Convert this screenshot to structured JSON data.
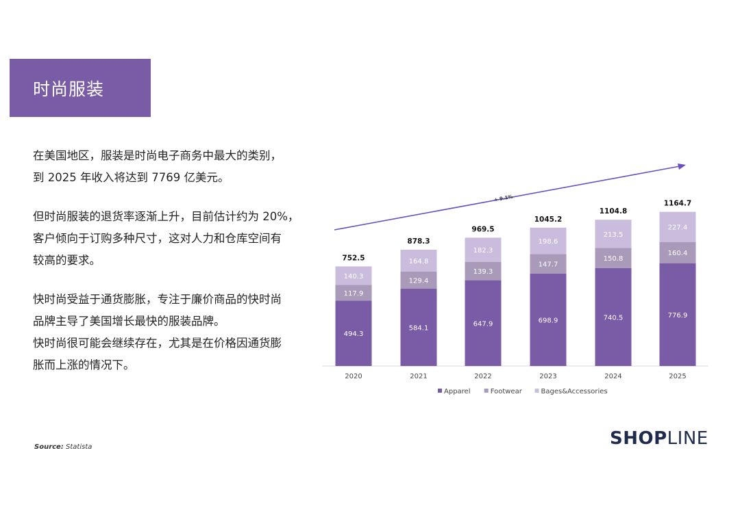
{
  "title": "时尚服装",
  "paragraphs": [
    [
      "在美国地区，服装是时尚电子商务中最大的类别，",
      "到 2025 年收入将达到 7769 亿美元。"
    ],
    [
      "但时尚服装的退货率逐渐上升，目前估计约为 20%，",
      "客户倾向于订购多种尺寸，这对人力和仓库空间有",
      "较高的要求。"
    ],
    [
      "快时尚受益于通货膨胀，专注于廉价商品的快时尚",
      "品牌主导了美国增长最快的服装品牌。",
      "快时尚很可能会继续存在，尤其是在价格因通货膨",
      "胀而上涨的情况下。"
    ]
  ],
  "source": {
    "label": "Source:",
    "value": "Statista"
  },
  "logo": {
    "part1": "SH",
    "part2": "O",
    "part3": "P",
    "part4": "LINE"
  },
  "colors": {
    "apparel": "#7a5ca6",
    "footwear": "#a89ab8",
    "accessories": "#c9bcdc",
    "arrow": "#6a4fc4",
    "title_bg": "#7a5ca6"
  },
  "chart_data": {
    "type": "bar",
    "stacked": true,
    "categories": [
      "2020",
      "2021",
      "2022",
      "2023",
      "2024",
      "2025"
    ],
    "series": [
      {
        "name": "Apparel",
        "values": [
          494.3,
          584.1,
          647.9,
          698.9,
          740.5,
          776.9
        ]
      },
      {
        "name": "Footwear",
        "values": [
          117.9,
          129.4,
          139.3,
          147.7,
          150.8,
          160.4
        ]
      },
      {
        "name": "Bages&Accessories",
        "values": [
          140.3,
          164.8,
          182.3,
          198.6,
          213.5,
          227.4
        ]
      }
    ],
    "totals": [
      752.5,
      878.3,
      969.5,
      1045.2,
      1104.8,
      1164.7
    ],
    "annotation": "+ 9.1%",
    "legend_position": "bottom",
    "grid": false
  }
}
